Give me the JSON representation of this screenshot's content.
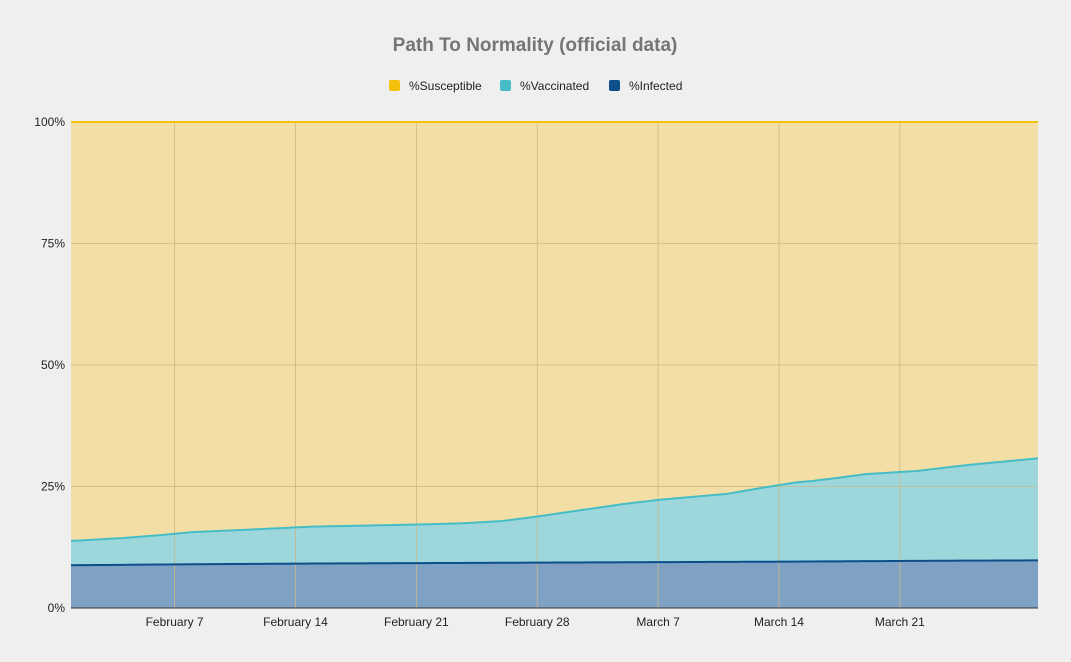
{
  "chart_data": {
    "type": "area",
    "stacked": true,
    "percent_stacked": true,
    "title": "Path To Normality (official data)",
    "xlabel": "",
    "ylabel": "",
    "ylim": [
      0,
      100
    ],
    "y_ticks": [
      "0%",
      "25%",
      "50%",
      "75%",
      "100%"
    ],
    "x_tick_labels": [
      "February 7",
      "February 14",
      "February 21",
      "February 28",
      "March 7",
      "March 14",
      "March 21"
    ],
    "x_tick_days": [
      6,
      13,
      20,
      27,
      34,
      41,
      48
    ],
    "x_start": "February 1",
    "x_end": "March 29",
    "grid": true,
    "legend_position": "top",
    "colors": {
      "%Susceptible": "#f4c20d",
      "%Vaccinated": "#46bdc6",
      "%Infected": "#0d4f8b",
      "background": "#efefef"
    },
    "series": [
      {
        "name": "%Infected",
        "x_days": [
          0,
          7,
          14,
          21,
          28,
          35,
          42,
          49,
          56
        ],
        "values": [
          8.8,
          9.0,
          9.15,
          9.25,
          9.35,
          9.45,
          9.55,
          9.7,
          9.8
        ]
      },
      {
        "name": "%Vaccinated",
        "x_days": [
          0,
          3,
          5,
          7,
          10,
          14,
          16,
          21,
          23,
          25,
          27,
          29,
          31,
          32,
          34,
          36,
          38,
          40,
          42,
          43,
          44,
          46,
          49,
          52,
          56
        ],
        "values": [
          5.0,
          5.5,
          6.0,
          6.6,
          7.0,
          7.6,
          7.7,
          8.0,
          8.2,
          8.6,
          9.5,
          10.5,
          11.5,
          12.0,
          12.8,
          13.4,
          14.0,
          15.2,
          16.3,
          16.6,
          17.0,
          17.9,
          18.5,
          19.7,
          21.0
        ]
      },
      {
        "name": "%Susceptible",
        "x_days": [
          0,
          56
        ],
        "values": "remainder to 100%"
      }
    ]
  }
}
